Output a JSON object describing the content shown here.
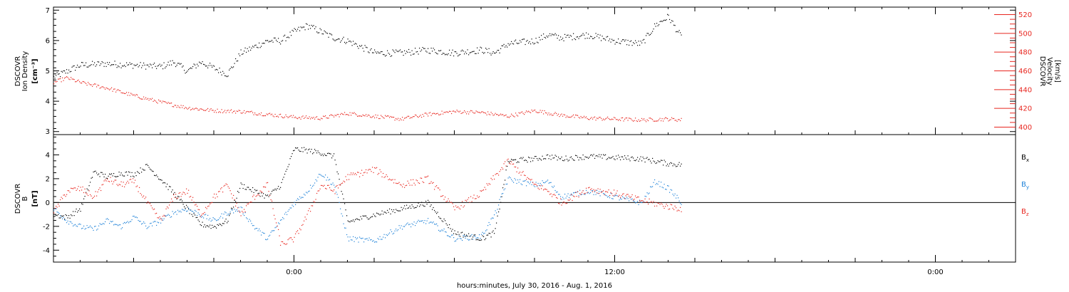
{
  "xaxis": {
    "label": "hours:minutes, July 30, 2016 - Aug.  1, 2016",
    "tick_labels": [
      "0:00",
      "12:00",
      "0:00"
    ],
    "range_hours": [
      -9,
      27
    ],
    "data_end_hours": 14.5
  },
  "chart_data": [
    {
      "type": "scatter",
      "panel": "top",
      "title": "",
      "ylabel": [
        "DSCOVR",
        "Ion Density",
        "[cm⁻³]"
      ],
      "ylim": [
        2.9,
        7.1
      ],
      "yticks": [
        "3",
        "4",
        "5",
        "6",
        "7"
      ],
      "y2label": [
        "DSCOVR",
        "Velocity",
        "[km/s]"
      ],
      "y2lim": [
        392,
        528
      ],
      "y2ticks": [
        "400",
        "420",
        "440",
        "460",
        "480",
        "500",
        "520"
      ],
      "series": [
        {
          "name": "",
          "axis": "left",
          "color": "#000000",
          "x": [
            -9,
            -8.5,
            -8,
            -7,
            -6,
            -5,
            -4.5,
            -4,
            -3.5,
            -3,
            -2.5,
            -2,
            -1.5,
            -1,
            -0.5,
            0,
            0.5,
            1,
            1.5,
            2,
            3,
            4,
            5,
            6,
            7,
            7.5,
            8,
            9,
            9.5,
            10,
            11,
            12,
            13,
            13.5,
            14,
            14.5
          ],
          "values": [
            4.8,
            5.0,
            5.2,
            5.25,
            5.2,
            5.15,
            5.3,
            5.0,
            5.3,
            5.1,
            4.9,
            5.6,
            5.8,
            6.0,
            6.0,
            6.3,
            6.5,
            6.3,
            6.1,
            6.0,
            5.6,
            5.6,
            5.7,
            5.6,
            5.7,
            5.6,
            5.9,
            6.0,
            6.2,
            6.1,
            6.2,
            6.0,
            5.9,
            6.5,
            6.8,
            6.1
          ]
        },
        {
          "name": "",
          "axis": "right",
          "color": "#e8261f",
          "x": [
            -9,
            -8.5,
            -8,
            -7,
            -6,
            -5,
            -4,
            -3,
            -2,
            -1,
            0,
            1,
            2,
            3,
            4,
            5,
            6,
            7,
            8,
            9,
            10,
            11,
            12,
            13,
            14,
            14.5
          ],
          "values": [
            448,
            453,
            448,
            442,
            434,
            427,
            421,
            418,
            417,
            414,
            411,
            410,
            415,
            412,
            409,
            414,
            417,
            416,
            412,
            418,
            413,
            410,
            409,
            408,
            409,
            408
          ]
        }
      ]
    },
    {
      "type": "scatter",
      "panel": "bottom",
      "title": "",
      "ylabel": [
        "DSCOVR",
        "B",
        "[nT]"
      ],
      "ylim": [
        -5.0,
        5.7
      ],
      "yticks": [
        "-4",
        "-2",
        "0",
        "2",
        "4"
      ],
      "legend_position": "right",
      "series": [
        {
          "name": "Bx",
          "color": "#000000",
          "x": [
            -9,
            -8.5,
            -8,
            -7.5,
            -7,
            -6.5,
            -6,
            -5.5,
            -5,
            -4.5,
            -4,
            -3.5,
            -3,
            -2.5,
            -2,
            -1.5,
            -1,
            -0.5,
            0,
            0.5,
            1,
            1.5,
            2,
            3,
            4,
            5,
            6,
            7,
            7.5,
            8,
            9,
            9.5,
            10,
            11,
            12,
            13,
            14,
            14.5
          ],
          "values": [
            -1.0,
            -1.2,
            -0.5,
            2.6,
            2.2,
            2.5,
            2.4,
            3.1,
            2.0,
            0.8,
            -0.5,
            -1.8,
            -2.0,
            -1.5,
            1.5,
            1.0,
            0.5,
            1.5,
            4.5,
            4.4,
            4.2,
            3.9,
            -1.6,
            -1.0,
            -0.5,
            0.0,
            -2.5,
            -3.0,
            -2.5,
            3.5,
            3.7,
            3.9,
            3.7,
            3.9,
            3.8,
            3.7,
            3.3,
            3.2
          ]
        },
        {
          "name": "By",
          "color": "#1e82d8",
          "x": [
            -9,
            -8.5,
            -8,
            -7.5,
            -7,
            -6.5,
            -6,
            -5.5,
            -5,
            -4.5,
            -4,
            -3.5,
            -3,
            -2.5,
            -2,
            -1.5,
            -1,
            -0.5,
            0,
            0.5,
            1,
            1.5,
            2,
            3,
            4,
            5,
            6,
            7,
            7.5,
            8,
            9,
            9.5,
            10,
            11,
            12,
            13,
            13.5,
            14,
            14.5
          ],
          "values": [
            -0.5,
            -1.5,
            -2.0,
            -2.2,
            -1.5,
            -2.0,
            -1.2,
            -2.0,
            -1.5,
            -0.8,
            -0.5,
            -1.0,
            -1.5,
            -0.8,
            -0.5,
            -2.0,
            -3.0,
            -1.5,
            0.0,
            1.0,
            2.5,
            1.5,
            -3.0,
            -3.2,
            -2.0,
            -1.5,
            -3.0,
            -2.8,
            -1.0,
            2.0,
            1.5,
            1.8,
            0.5,
            1.0,
            0.5,
            0.0,
            1.8,
            1.2,
            0.0
          ]
        },
        {
          "name": "Bz",
          "color": "#e8261f",
          "x": [
            -9,
            -8.5,
            -8,
            -7.5,
            -7,
            -6.5,
            -6,
            -5.5,
            -5,
            -4.5,
            -4,
            -3.5,
            -3,
            -2.5,
            -2,
            -1.5,
            -1,
            -0.5,
            0,
            0.5,
            1,
            1.5,
            2,
            3,
            4,
            5,
            6,
            7,
            7.5,
            8,
            9,
            9.5,
            10,
            11,
            12,
            13,
            14,
            14.5
          ],
          "values": [
            -0.8,
            1.0,
            1.2,
            0.5,
            2.0,
            1.5,
            1.8,
            0.0,
            -1.5,
            0.5,
            1.0,
            -1.0,
            0.5,
            1.5,
            -1.0,
            0.5,
            1.5,
            -3.5,
            -3.0,
            -1.0,
            1.5,
            1.0,
            2.2,
            2.8,
            1.5,
            2.0,
            -0.5,
            0.8,
            2.2,
            3.5,
            1.5,
            1.0,
            0.0,
            1.2,
            0.8,
            0.2,
            -0.3,
            -0.5
          ]
        }
      ]
    }
  ]
}
